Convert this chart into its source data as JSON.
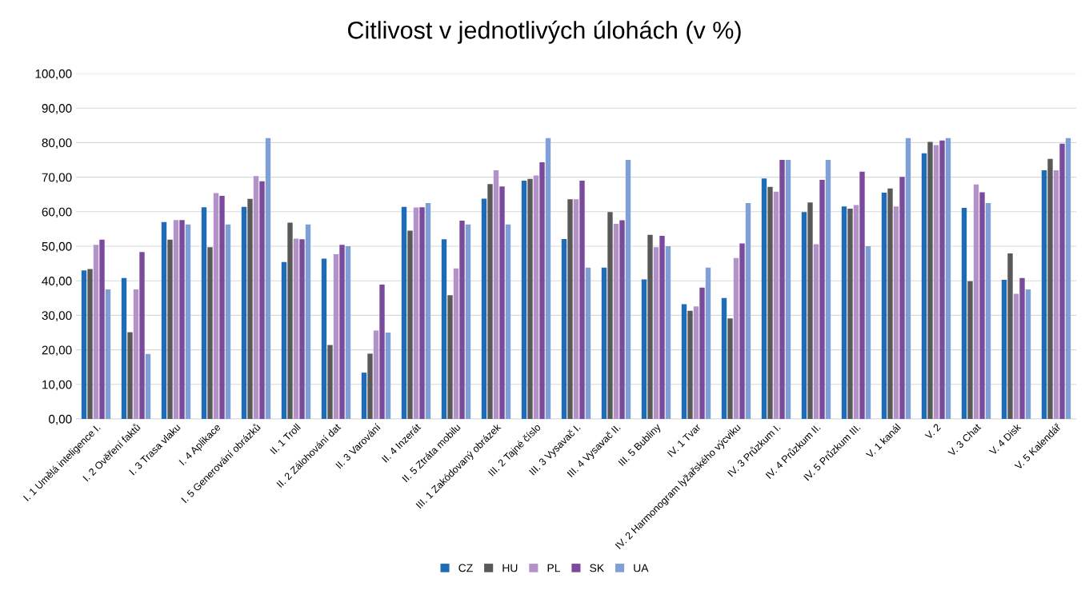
{
  "chart_data": {
    "type": "bar",
    "title": "Citlivost v jednotlivých úlohách (v %)",
    "categories": [
      "I. 1 Umělá inteligence I.",
      "I. 2 Ověření faktů",
      "I. 3 Trasa vlaku",
      "I. 4 Aplikace",
      "I. 5 Generování obrázků",
      "II. 1 Troll",
      "II. 2 Zálohování dat",
      "II. 3 Varování",
      "II. 4 Inzerát",
      "II. 5 Ztráta mobilu",
      "III. 1 Zakódovaný obrázek",
      "III. 2 Tajné číslo",
      "III. 3 Vysavač I.",
      "III. 4 Vysavač II.",
      "III. 5 Bubliny",
      "IV. 1 Tvar",
      "IV. 2 Harmonogram lyžařského výcviku",
      "IV. 3 Průzkum I.",
      "IV. 4 Průzkum II.",
      "IV. 5 Průzkum III.",
      "V. 1 kanál",
      "V. 2",
      "V. 3 Chat",
      "V. 4 Disk",
      "V. 5 Kalendář"
    ],
    "series": [
      {
        "name": "CZ",
        "color": "#1f6bb5",
        "values": [
          43.0,
          40.8,
          57.0,
          61.3,
          61.4,
          45.4,
          46.4,
          13.4,
          61.4,
          52.0,
          63.8,
          69.0,
          52.1,
          43.8,
          40.4,
          33.2,
          35.0,
          69.6,
          59.9,
          61.5,
          65.5,
          76.9,
          61.1,
          40.3,
          72.0
        ]
      },
      {
        "name": "HU",
        "color": "#595959",
        "values": [
          43.4,
          25.1,
          51.9,
          49.7,
          63.7,
          56.8,
          21.4,
          18.9,
          54.5,
          35.8,
          68.0,
          69.5,
          63.6,
          59.9,
          53.3,
          31.3,
          29.1,
          67.2,
          62.7,
          60.9,
          66.7,
          80.2,
          39.9,
          47.9,
          75.3
        ]
      },
      {
        "name": "PL",
        "color": "#b292c9",
        "values": [
          50.4,
          37.5,
          57.6,
          65.4,
          70.3,
          52.2,
          47.7,
          25.6,
          61.2,
          43.6,
          72.0,
          70.5,
          63.6,
          56.5,
          49.7,
          32.6,
          46.6,
          65.8,
          50.6,
          61.9,
          61.5,
          79.3,
          67.9,
          36.2,
          72.0
        ]
      },
      {
        "name": "SK",
        "color": "#7a4a9c",
        "values": [
          51.9,
          48.3,
          57.6,
          64.6,
          68.8,
          52.0,
          50.4,
          38.9,
          61.3,
          57.4,
          67.3,
          74.3,
          69.0,
          57.5,
          53.0,
          38.0,
          50.8,
          75.0,
          69.2,
          71.6,
          70.1,
          80.6,
          65.6,
          40.8,
          79.7
        ]
      },
      {
        "name": "UA",
        "color": "#7f9fd6",
        "values": [
          37.5,
          18.8,
          56.3,
          56.3,
          81.3,
          56.3,
          50.0,
          25.0,
          62.5,
          56.3,
          56.3,
          81.3,
          43.8,
          75.0,
          50.0,
          43.8,
          62.5,
          75.0,
          75.0,
          50.0,
          81.3,
          81.3,
          62.5,
          37.5,
          81.3
        ]
      }
    ],
    "ylim": [
      0,
      100
    ],
    "yticks": [
      {
        "value": 0,
        "label": "0,00"
      },
      {
        "value": 10,
        "label": "10,00"
      },
      {
        "value": 20,
        "label": "20,00"
      },
      {
        "value": 30,
        "label": "30,00"
      },
      {
        "value": 40,
        "label": "40,00"
      },
      {
        "value": 50,
        "label": "50,00"
      },
      {
        "value": 60,
        "label": "60,00"
      },
      {
        "value": 70,
        "label": "70,00"
      },
      {
        "value": 80,
        "label": "80,00"
      },
      {
        "value": 90,
        "label": "90,00"
      },
      {
        "value": 100,
        "label": "100,00"
      }
    ],
    "grid": "y",
    "legend": "bottom"
  }
}
